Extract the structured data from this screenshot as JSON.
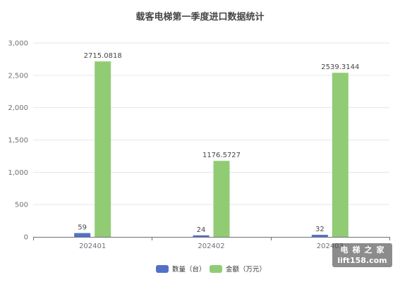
{
  "chart_data": {
    "type": "bar",
    "title": "载客电梯第一季度进口数据统计",
    "categories": [
      "202401",
      "202402",
      "202403"
    ],
    "series": [
      {
        "name": "数量（台）",
        "values": [
          59,
          24,
          32
        ],
        "color": "#5470c6"
      },
      {
        "name": "金额（万元）",
        "values": [
          2715.0818,
          1176.5727,
          2539.3144
        ],
        "color": "#91cc75"
      }
    ],
    "ylim": [
      0,
      3000
    ],
    "yticks": [
      0,
      500,
      1000,
      1500,
      2000,
      2500,
      3000
    ],
    "ytick_labels": [
      "0",
      "500",
      "1,000",
      "1,500",
      "2,000",
      "2,500",
      "3,000"
    ],
    "grid": true,
    "legend_position": "bottom",
    "xlabel": "",
    "ylabel": ""
  },
  "watermark": {
    "brand": "电梯之家",
    "url": "lift158.com"
  },
  "colors": {
    "grid": "#e0e6f1",
    "axis": "#6e7079",
    "label": "#464646"
  }
}
